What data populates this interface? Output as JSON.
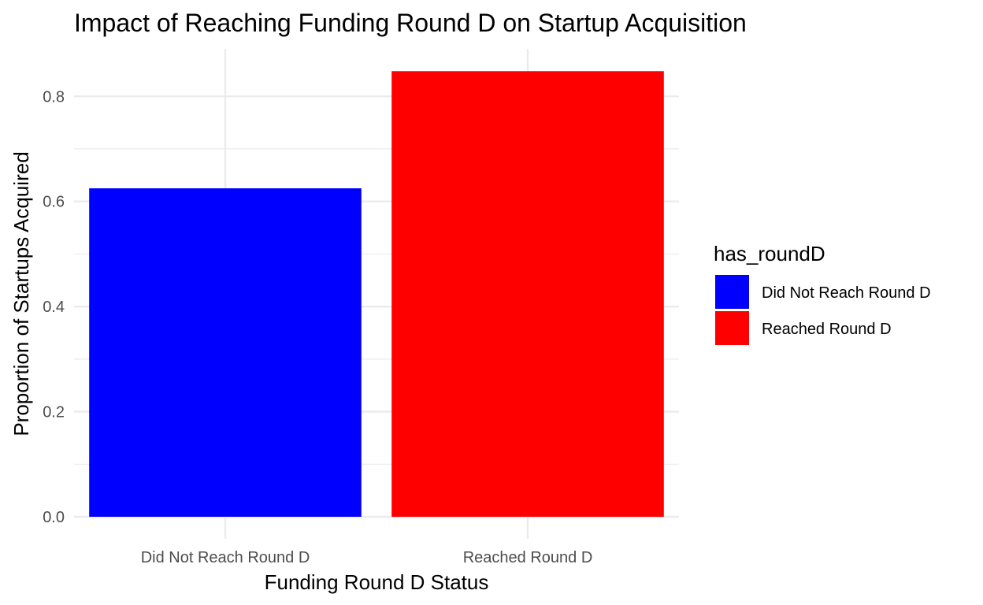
{
  "chart_data": {
    "type": "bar",
    "title": "Impact of Reaching Funding Round D on Startup Acquisition",
    "xlabel": "Funding Round D Status",
    "ylabel": "Proportion of Startups Acquired",
    "categories": [
      "Did Not Reach Round D",
      "Reached Round D"
    ],
    "values": [
      0.625,
      0.848
    ],
    "colors": [
      "#0000FF",
      "#FF0000"
    ],
    "ylim": [
      0,
      0.9
    ],
    "yticks": [
      0.0,
      0.2,
      0.4,
      0.6,
      0.8
    ],
    "ytick_labels": [
      "0.0",
      "0.2",
      "0.4",
      "0.6",
      "0.8"
    ],
    "grid": true,
    "legend": {
      "title": "has_roundD",
      "placement": "right",
      "entries": [
        "Did Not Reach Round D",
        "Reached Round D"
      ]
    }
  }
}
